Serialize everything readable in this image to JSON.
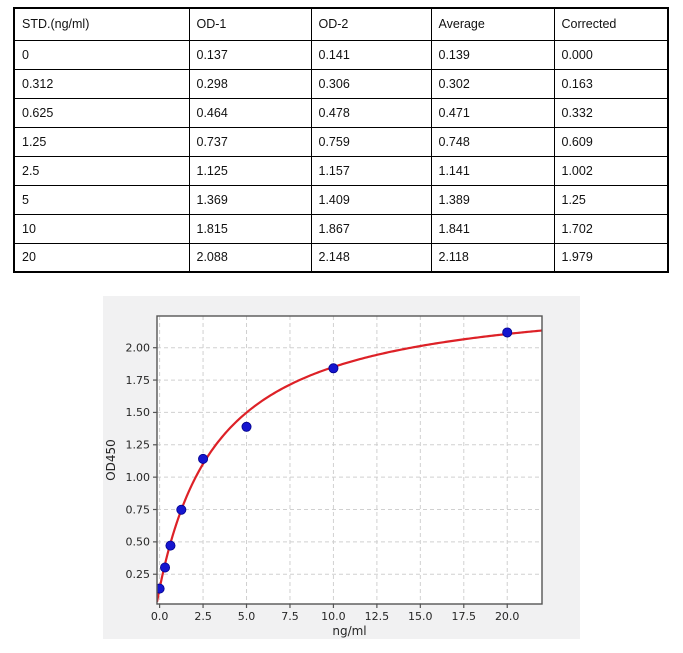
{
  "table": {
    "columns": [
      "STD.(ng/ml)",
      "OD-1",
      "OD-2",
      "Average",
      "Corrected"
    ],
    "rows": [
      [
        "0",
        "0.137",
        "0.141",
        "0.139",
        "0.000"
      ],
      [
        "0.312",
        "0.298",
        "0.306",
        "0.302",
        "0.163"
      ],
      [
        "0.625",
        "0.464",
        "0.478",
        "0.471",
        "0.332"
      ],
      [
        "1.25",
        "0.737",
        "0.759",
        "0.748",
        "0.609"
      ],
      [
        "2.5",
        "1.125",
        "1.157",
        "1.141",
        "1.002"
      ],
      [
        "5",
        "1.369",
        "1.409",
        "1.389",
        "1.25"
      ],
      [
        "10",
        "1.815",
        "1.867",
        "1.841",
        "1.702"
      ],
      [
        "20",
        "2.088",
        "2.148",
        "2.118",
        "1.979"
      ]
    ]
  },
  "chart_data": {
    "type": "scatter",
    "title": "",
    "xlabel": "ng/ml",
    "ylabel": "OD450",
    "x": [
      0,
      0.312,
      0.625,
      1.25,
      2.5,
      5,
      10,
      20
    ],
    "y": [
      0.139,
      0.302,
      0.471,
      0.748,
      1.141,
      1.389,
      1.841,
      2.118
    ],
    "fit_curve": {
      "model": "4PL",
      "a": 0.14,
      "d": 2.45,
      "c": 3.5,
      "b": 1.0
    },
    "xlim": [
      -0.15,
      22.0
    ],
    "ylim": [
      0.02,
      2.245
    ],
    "xticks": [
      0,
      2.5,
      5,
      7.5,
      10,
      12.5,
      15,
      17.5,
      20
    ],
    "xtick_labels": [
      "0.0",
      "2.5",
      "5.0",
      "7.5",
      "10.0",
      "12.5",
      "15.0",
      "17.5",
      "20.0"
    ],
    "yticks": [
      0.25,
      0.5,
      0.75,
      1.0,
      1.25,
      1.5,
      1.75,
      2.0
    ],
    "ytick_labels": [
      "0.25",
      "0.50",
      "0.75",
      "1.00",
      "1.25",
      "1.50",
      "1.75",
      "2.00"
    ],
    "grid": true,
    "legend": null,
    "colors": {
      "marker": "#1515cf",
      "marker_edge": "#00008b",
      "curve": "#dd2127",
      "figure_bg": "#f1f1f2",
      "plot_bg": "#ffffff",
      "grid": "#d0d0d0",
      "spine": "#555555",
      "tick_text": "#262626"
    }
  }
}
